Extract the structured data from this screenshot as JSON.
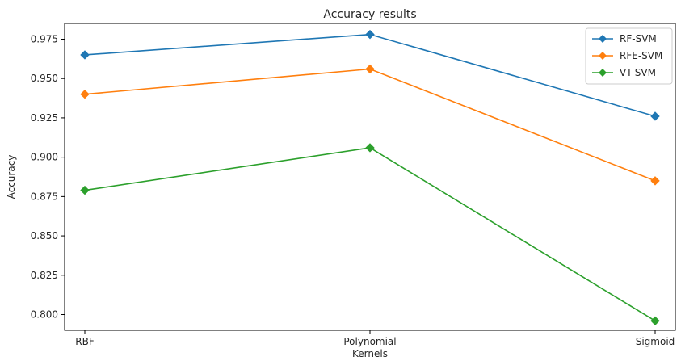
{
  "chart_data": {
    "type": "line",
    "title": "Accuracy results",
    "xlabel": "Kernels",
    "ylabel": "Accuracy",
    "categories": [
      "RBF",
      "Polynomial",
      "Sigmoid"
    ],
    "ylim": [
      0.79,
      0.985
    ],
    "yticks": [
      0.8,
      0.825,
      0.85,
      0.875,
      0.9,
      0.925,
      0.95,
      0.975
    ],
    "ytick_labels": [
      "0.800",
      "0.825",
      "0.850",
      "0.875",
      "0.900",
      "0.925",
      "0.950",
      "0.975"
    ],
    "grid": false,
    "legend_position": "top-right",
    "marker": "diamond",
    "series": [
      {
        "name": "RF-SVM",
        "color": "#1f77b4",
        "values": [
          0.965,
          0.978,
          0.926
        ]
      },
      {
        "name": "RFE-SVM",
        "color": "#ff7f0e",
        "values": [
          0.94,
          0.956,
          0.885
        ]
      },
      {
        "name": "VT-SVM",
        "color": "#2ca02c",
        "values": [
          0.879,
          0.906,
          0.796
        ]
      }
    ]
  }
}
